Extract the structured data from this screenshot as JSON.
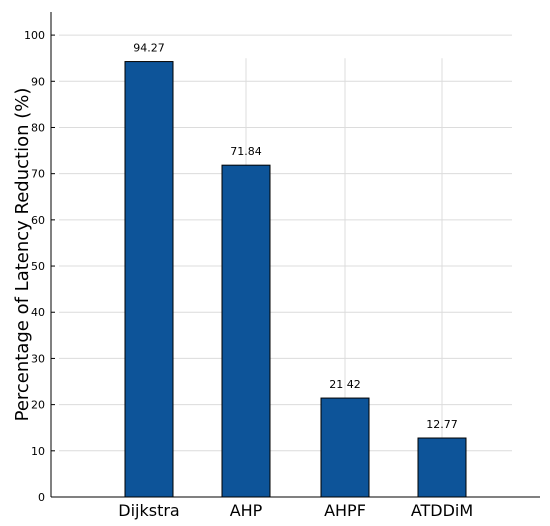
{
  "chart_data": {
    "type": "bar",
    "categories": [
      "Dijkstra",
      "AHP",
      "AHPF",
      "ATDDiM"
    ],
    "values": [
      94.27,
      71.84,
      21.42,
      12.77
    ],
    "value_labels": [
      "94.27",
      "71.84",
      "21 42",
      "12.77"
    ],
    "ylabel": "Percentage of Latency Reduction (%)",
    "xlabel": "",
    "ylim": [
      0,
      105
    ],
    "yticks": [
      0,
      10,
      20,
      30,
      40,
      50,
      60,
      70,
      80,
      90,
      100
    ],
    "grid": true,
    "bar_color": "#0d5499",
    "bar_edge_color": "#000000"
  }
}
